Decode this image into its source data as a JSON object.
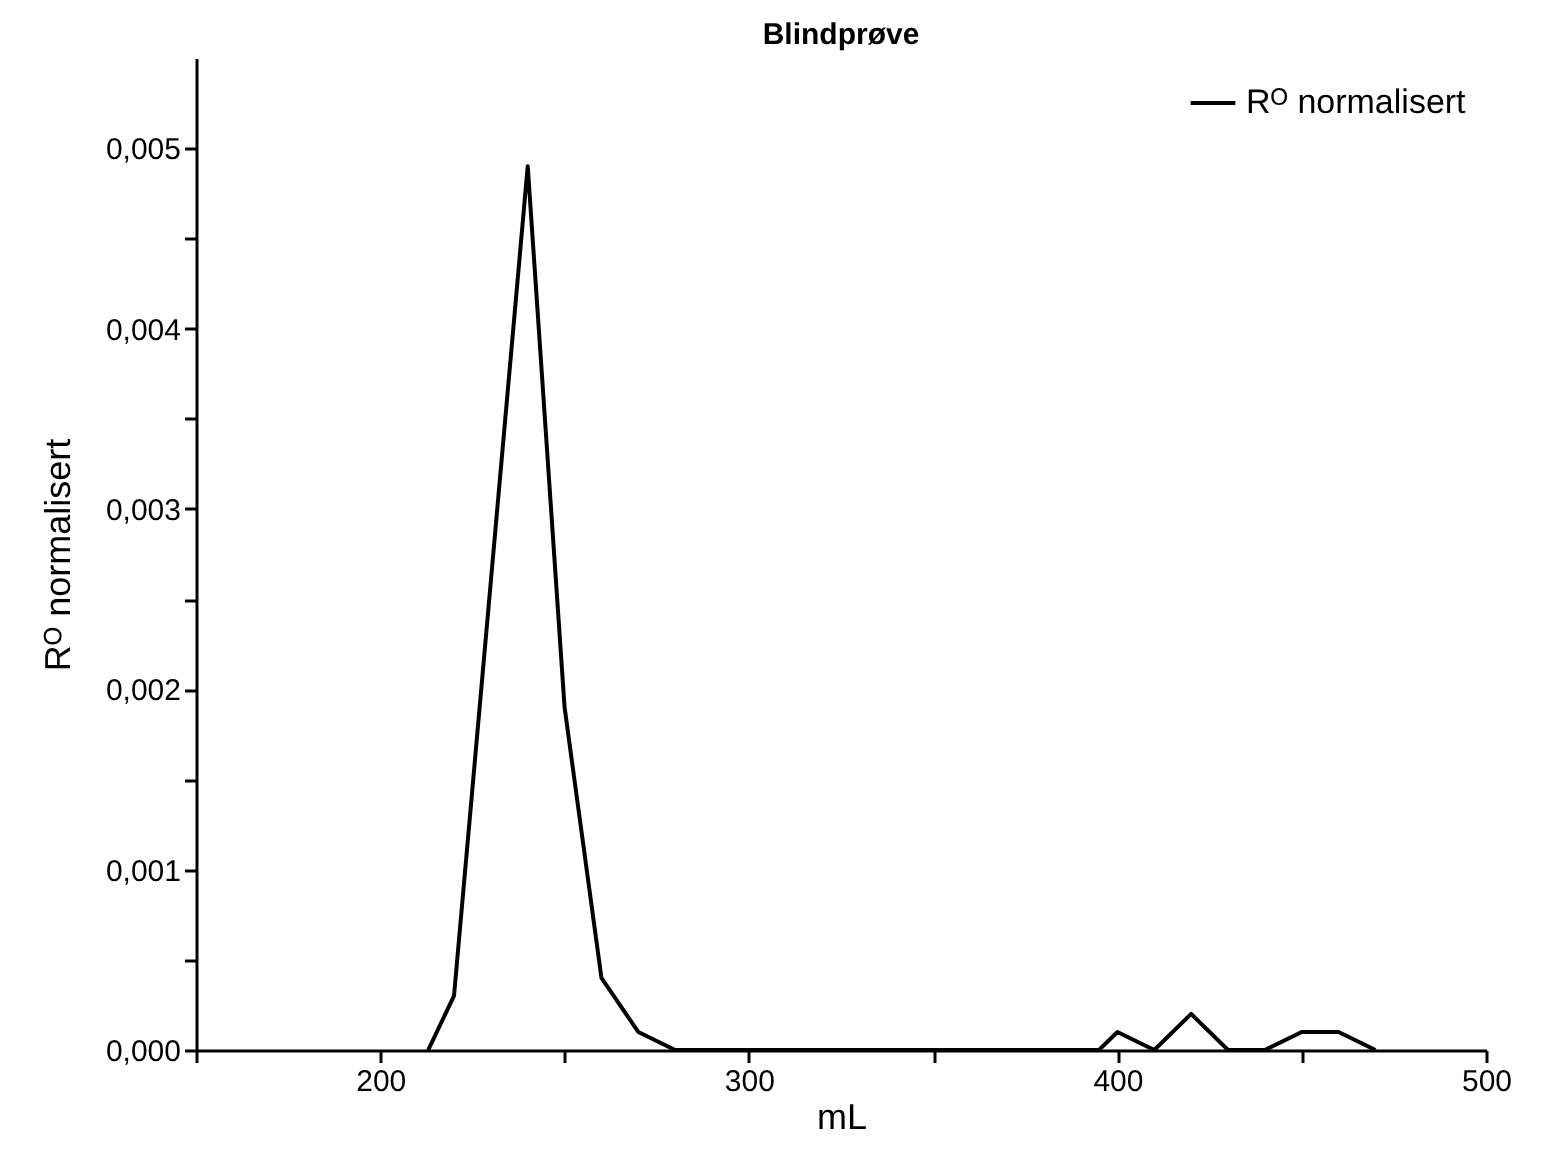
{
  "chart_data": {
    "type": "line",
    "title": "Blindprøve",
    "xlabel": "mL",
    "ylabel": "Rᴼ normalisert",
    "x": [
      213,
      220,
      240,
      250,
      260,
      270,
      280,
      290,
      300,
      310,
      320,
      330,
      340,
      350,
      360,
      370,
      380,
      390,
      395,
      400,
      410,
      420,
      430,
      440,
      450,
      460,
      470
    ],
    "series": [
      {
        "name": "Rᴼ normalisert",
        "color": "#000000",
        "values": [
          0,
          0.0003,
          0.0049,
          0.0019,
          0.0004,
          0.0001,
          0,
          0,
          0,
          0,
          0,
          0,
          0,
          0,
          0,
          0,
          0,
          0,
          0,
          0.0001,
          0,
          0.0002,
          0,
          0,
          0.0001,
          0.0001,
          0
        ]
      }
    ],
    "xlim": [
      150,
      500
    ],
    "xticks": [
      {
        "value": 150,
        "label": null
      },
      200,
      {
        "value": 250,
        "label": null
      },
      300,
      {
        "value": 350,
        "label": null
      },
      400,
      {
        "value": 450,
        "label": null
      },
      500
    ],
    "ylim": [
      0,
      0.0055
    ],
    "yticks": [
      {
        "value": 0,
        "label": "0,000"
      },
      {
        "value": 0.0005,
        "label": null
      },
      {
        "value": 0.001,
        "label": "0,001"
      },
      {
        "value": 0.0015,
        "label": null
      },
      {
        "value": 0.002,
        "label": "0,002"
      },
      {
        "value": 0.0025,
        "label": null
      },
      {
        "value": 0.003,
        "label": "0,003"
      },
      {
        "value": 0.0035,
        "label": null
      },
      {
        "value": 0.004,
        "label": "0,004"
      },
      {
        "value": 0.0045,
        "label": null
      },
      {
        "value": 0.005,
        "label": "0,005"
      }
    ],
    "grid": false,
    "legend": "top right",
    "marker": "none",
    "line_style": "solid"
  }
}
